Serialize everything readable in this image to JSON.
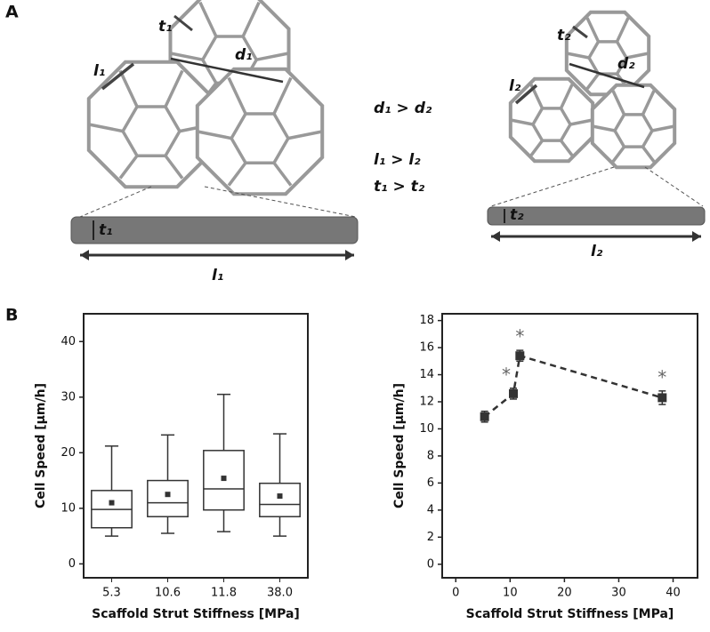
{
  "labels": {
    "panel_a": "A",
    "panel_b": "B"
  },
  "diagram": {
    "large": {
      "t": "t₁",
      "l": "l₁",
      "d": "d₁",
      "strut_t": "t₁",
      "strut_l": "l₁"
    },
    "small": {
      "t": "t₂",
      "l": "l₂",
      "d": "d₂",
      "strut_t": "t₂",
      "strut_l": "l₂"
    },
    "relations": [
      "d₁ > d₂",
      "l₁ > l₂",
      "t₁ > t₂"
    ]
  },
  "chart_data": [
    {
      "type": "box",
      "xlabel": "Scaffold Strut Stiffness [MPa]",
      "ylabel": "Cell Speed [μm/h]",
      "categories": [
        "5.3",
        "10.6",
        "11.8",
        "38.0"
      ],
      "stats": {
        "whislo": [
          5,
          5.5,
          5.8,
          5
        ],
        "q1": [
          6.5,
          8.5,
          9.7,
          8.5
        ],
        "median": [
          9.8,
          11,
          13.5,
          10.7
        ],
        "q3": [
          13.2,
          15,
          20.4,
          14.5
        ],
        "whishi": [
          21.2,
          23.2,
          30.5,
          23.4
        ],
        "mean": [
          11,
          12.5,
          15.4,
          12.2
        ]
      },
      "ylim": [
        -2.5,
        45
      ],
      "yticks": [
        0,
        10,
        20,
        30,
        40
      ],
      "color": "#333333"
    },
    {
      "type": "line",
      "xlabel": "Scaffold Strut Stiffness [MPa]",
      "ylabel": "Cell Speed [μm/h]",
      "x": [
        5.3,
        10.6,
        11.8,
        38.0
      ],
      "values": [
        10.9,
        12.6,
        15.4,
        12.3
      ],
      "errors": [
        0.4,
        0.4,
        0.4,
        0.5
      ],
      "significance": [
        null,
        "*",
        "*",
        "*"
      ],
      "xlim": [
        -2.5,
        44.5
      ],
      "xticks": [
        0,
        10,
        20,
        30,
        40
      ],
      "ylim": [
        -1,
        18.5
      ],
      "yticks": [
        0,
        2,
        4,
        6,
        8,
        10,
        12,
        14,
        16,
        18
      ],
      "color": "#333333"
    }
  ]
}
